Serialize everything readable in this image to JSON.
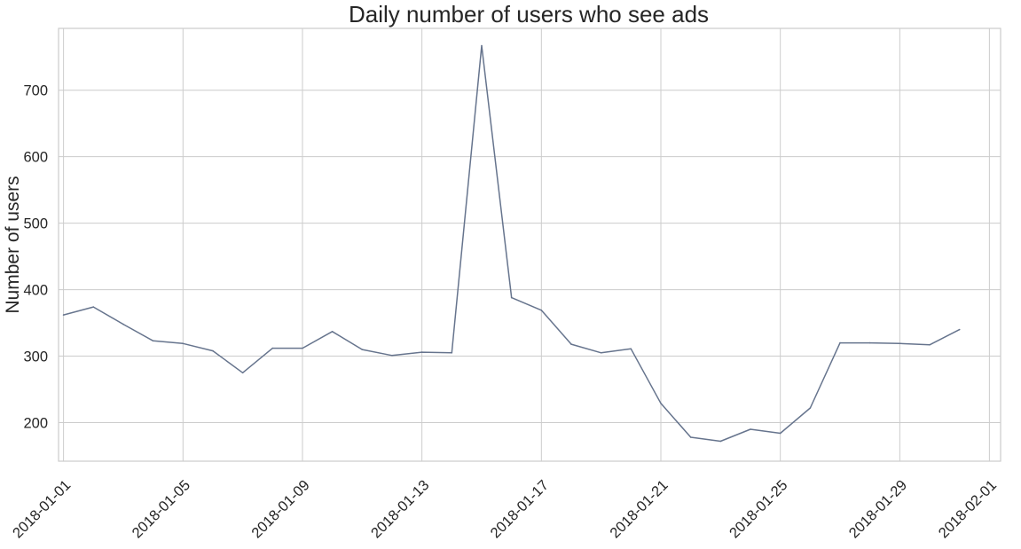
{
  "chart_data": {
    "type": "line",
    "title": "Daily number of users who see ads",
    "xlabel": "",
    "ylabel": "Number of users",
    "x_start": "2017-12-31T20:00",
    "x_end": "2018-02-01T09:00",
    "ylim": [
      142,
      793
    ],
    "x_ticks": [
      "2018-01-01",
      "2018-01-05",
      "2018-01-09",
      "2018-01-13",
      "2018-01-17",
      "2018-01-21",
      "2018-01-25",
      "2018-01-29",
      "2018-02-01"
    ],
    "y_ticks": [
      200,
      300,
      400,
      500,
      600,
      700
    ],
    "grid": true,
    "line_color": "#66748d",
    "series": [
      {
        "x": [
          "2018-01-01",
          "2018-01-02",
          "2018-01-03",
          "2018-01-04",
          "2018-01-05",
          "2018-01-06",
          "2018-01-07",
          "2018-01-08",
          "2018-01-09",
          "2018-01-10",
          "2018-01-11",
          "2018-01-12",
          "2018-01-13",
          "2018-01-14",
          "2018-01-15",
          "2018-01-16",
          "2018-01-17",
          "2018-01-18",
          "2018-01-19",
          "2018-01-20",
          "2018-01-21",
          "2018-01-22",
          "2018-01-23",
          "2018-01-24",
          "2018-01-25",
          "2018-01-26",
          "2018-01-27",
          "2018-01-28",
          "2018-01-29",
          "2018-01-30",
          "2018-01-31"
        ],
        "values": [
          362,
          374,
          348,
          323,
          319,
          308,
          275,
          312,
          312,
          337,
          310,
          301,
          306,
          305,
          767,
          388,
          369,
          318,
          305,
          311,
          229,
          178,
          172,
          190,
          184,
          222,
          320,
          320,
          319,
          317,
          340
        ]
      }
    ]
  }
}
